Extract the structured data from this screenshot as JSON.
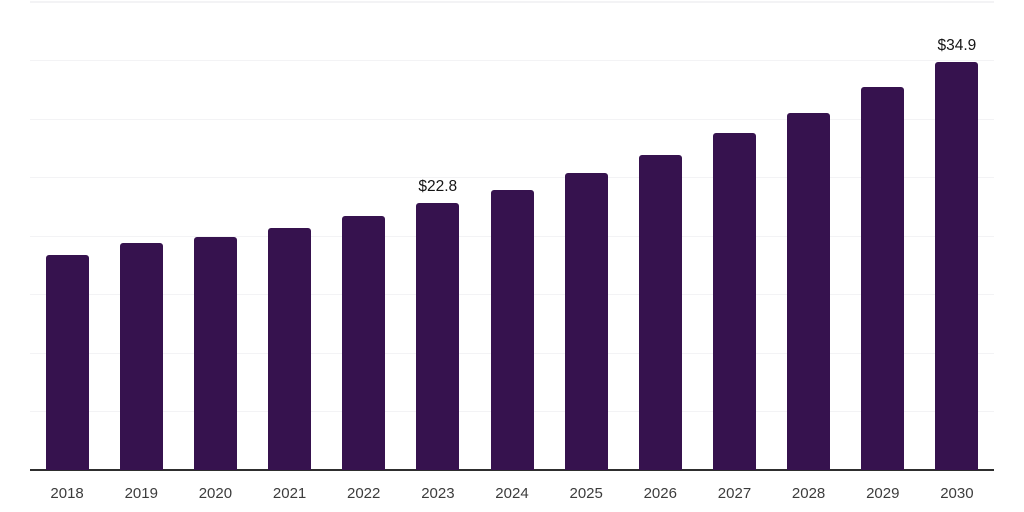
{
  "chart_data": {
    "type": "bar",
    "title": "",
    "xlabel": "",
    "ylabel": "",
    "categories": [
      "2018",
      "2019",
      "2020",
      "2021",
      "2022",
      "2023",
      "2024",
      "2025",
      "2026",
      "2027",
      "2028",
      "2029",
      "2030"
    ],
    "values": [
      18.4,
      19.4,
      19.9,
      20.7,
      21.7,
      22.8,
      23.9,
      25.4,
      26.9,
      28.8,
      30.5,
      32.7,
      34.9
    ],
    "bar_labels": [
      "",
      "",
      "",
      "",
      "",
      "$22.8",
      "",
      "",
      "",
      "",
      "",
      "",
      "$34.9"
    ],
    "ylim": [
      0,
      40
    ],
    "gridline_interval": 5,
    "grid": "horizontal",
    "legend": "none",
    "y_tick_labels_shown": false,
    "colors": {
      "bar": "#36124E",
      "axis_line": "#2E2E2E",
      "gridline": "#F3F3F5",
      "value_label": "#141414",
      "tick_label": "#3C3C3C",
      "background": "#FFFFFF"
    }
  }
}
